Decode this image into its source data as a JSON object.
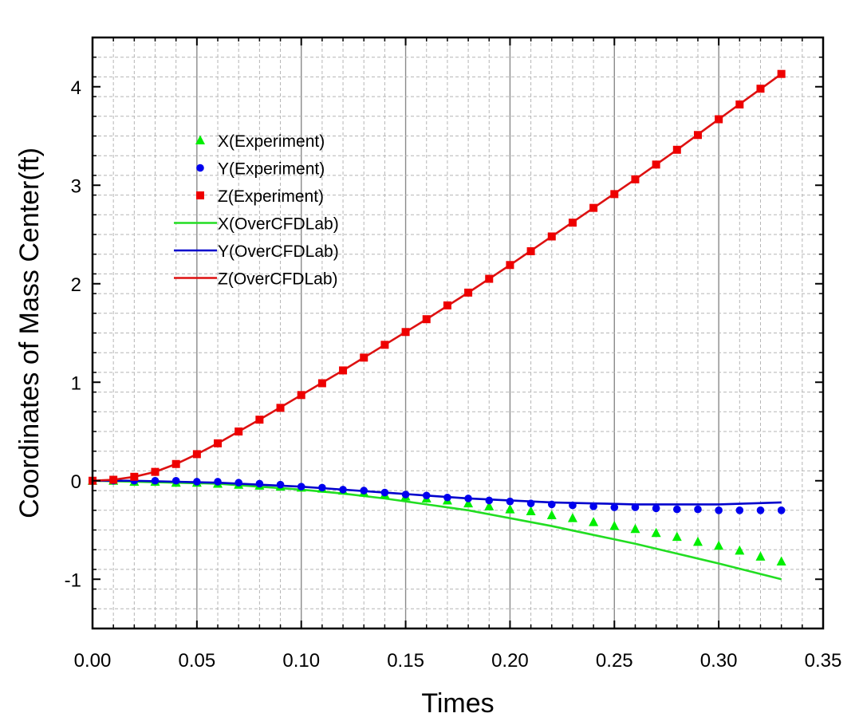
{
  "chart_data": {
    "type": "line",
    "title": "",
    "xlabel": "Times",
    "ylabel": "Coordinates of Mass Center(ft)",
    "xlim": [
      0.0,
      0.35
    ],
    "ylim": [
      -1.5,
      4.5
    ],
    "x_ticks": [
      "0.00",
      "0.05",
      "0.10",
      "0.15",
      "0.20",
      "0.25",
      "0.30",
      "0.35"
    ],
    "y_ticks": [
      "-1",
      "0",
      "1",
      "2",
      "3",
      "4"
    ],
    "grid": true,
    "legend_position": "upper-left",
    "series": [
      {
        "name": "X(Experiment)",
        "kind": "scatter",
        "marker": "triangle",
        "color": "#00ee00",
        "x": [
          0.0,
          0.01,
          0.02,
          0.03,
          0.04,
          0.05,
          0.06,
          0.07,
          0.08,
          0.09,
          0.1,
          0.11,
          0.12,
          0.13,
          0.14,
          0.15,
          0.16,
          0.17,
          0.18,
          0.19,
          0.2,
          0.21,
          0.22,
          0.23,
          0.24,
          0.25,
          0.26,
          0.27,
          0.28,
          0.29,
          0.3,
          0.31,
          0.32,
          0.33
        ],
        "y": [
          0.0,
          0.0,
          -0.01,
          -0.01,
          -0.02,
          -0.02,
          -0.03,
          -0.04,
          -0.05,
          -0.06,
          -0.07,
          -0.08,
          -0.1,
          -0.12,
          -0.14,
          -0.16,
          -0.18,
          -0.2,
          -0.23,
          -0.26,
          -0.29,
          -0.31,
          -0.35,
          -0.38,
          -0.42,
          -0.46,
          -0.49,
          -0.53,
          -0.57,
          -0.62,
          -0.66,
          -0.71,
          -0.77,
          -0.82
        ]
      },
      {
        "name": "Y(Experiment)",
        "kind": "scatter",
        "marker": "circle",
        "color": "#0000ee",
        "x": [
          0.0,
          0.01,
          0.02,
          0.03,
          0.04,
          0.05,
          0.06,
          0.07,
          0.08,
          0.09,
          0.1,
          0.11,
          0.12,
          0.13,
          0.14,
          0.15,
          0.16,
          0.17,
          0.18,
          0.19,
          0.2,
          0.21,
          0.22,
          0.23,
          0.24,
          0.25,
          0.26,
          0.27,
          0.28,
          0.29,
          0.3,
          0.31,
          0.32,
          0.33
        ],
        "y": [
          0.0,
          0.0,
          0.0,
          0.0,
          0.0,
          -0.01,
          -0.01,
          -0.02,
          -0.03,
          -0.04,
          -0.06,
          -0.07,
          -0.09,
          -0.1,
          -0.12,
          -0.14,
          -0.15,
          -0.17,
          -0.18,
          -0.2,
          -0.21,
          -0.23,
          -0.24,
          -0.25,
          -0.26,
          -0.27,
          -0.27,
          -0.28,
          -0.29,
          -0.29,
          -0.3,
          -0.3,
          -0.3,
          -0.3
        ]
      },
      {
        "name": "Z(Experiment)",
        "kind": "scatter",
        "marker": "square",
        "color": "#ee0000",
        "x": [
          0.0,
          0.01,
          0.02,
          0.03,
          0.04,
          0.05,
          0.06,
          0.07,
          0.08,
          0.09,
          0.1,
          0.11,
          0.12,
          0.13,
          0.14,
          0.15,
          0.16,
          0.17,
          0.18,
          0.19,
          0.2,
          0.21,
          0.22,
          0.23,
          0.24,
          0.25,
          0.26,
          0.27,
          0.28,
          0.29,
          0.3,
          0.31,
          0.32,
          0.33
        ],
        "y": [
          0.0,
          0.01,
          0.04,
          0.09,
          0.17,
          0.27,
          0.38,
          0.5,
          0.62,
          0.74,
          0.87,
          0.99,
          1.12,
          1.25,
          1.38,
          1.51,
          1.64,
          1.78,
          1.91,
          2.05,
          2.19,
          2.33,
          2.48,
          2.62,
          2.77,
          2.91,
          3.06,
          3.21,
          3.36,
          3.51,
          3.67,
          3.82,
          3.98,
          4.13
        ]
      },
      {
        "name": "X(OverCFDLab)",
        "kind": "line",
        "color": "#22dd22",
        "x": [
          0.0,
          0.02,
          0.04,
          0.06,
          0.08,
          0.1,
          0.12,
          0.14,
          0.16,
          0.18,
          0.2,
          0.22,
          0.24,
          0.26,
          0.28,
          0.3,
          0.33
        ],
        "y": [
          0.0,
          -0.01,
          -0.02,
          -0.03,
          -0.06,
          -0.09,
          -0.13,
          -0.18,
          -0.24,
          -0.3,
          -0.38,
          -0.46,
          -0.55,
          -0.64,
          -0.74,
          -0.84,
          -1.0
        ]
      },
      {
        "name": "Y(OverCFDLab)",
        "kind": "line",
        "color": "#0000cc",
        "x": [
          0.0,
          0.02,
          0.04,
          0.06,
          0.08,
          0.1,
          0.12,
          0.14,
          0.16,
          0.18,
          0.2,
          0.22,
          0.24,
          0.26,
          0.28,
          0.3,
          0.33
        ],
        "y": [
          0.0,
          0.0,
          -0.01,
          -0.02,
          -0.04,
          -0.06,
          -0.09,
          -0.12,
          -0.15,
          -0.18,
          -0.2,
          -0.22,
          -0.23,
          -0.24,
          -0.24,
          -0.24,
          -0.22
        ]
      },
      {
        "name": "Z(OverCFDLab)",
        "kind": "line",
        "color": "#dd1111",
        "x": [
          0.0,
          0.01,
          0.02,
          0.03,
          0.04,
          0.05,
          0.06,
          0.08,
          0.1,
          0.12,
          0.14,
          0.16,
          0.18,
          0.2,
          0.22,
          0.24,
          0.26,
          0.28,
          0.3,
          0.33
        ],
        "y": [
          0.0,
          0.01,
          0.04,
          0.09,
          0.17,
          0.27,
          0.38,
          0.62,
          0.87,
          1.12,
          1.38,
          1.64,
          1.91,
          2.19,
          2.48,
          2.77,
          3.06,
          3.36,
          3.67,
          4.13
        ]
      }
    ]
  }
}
